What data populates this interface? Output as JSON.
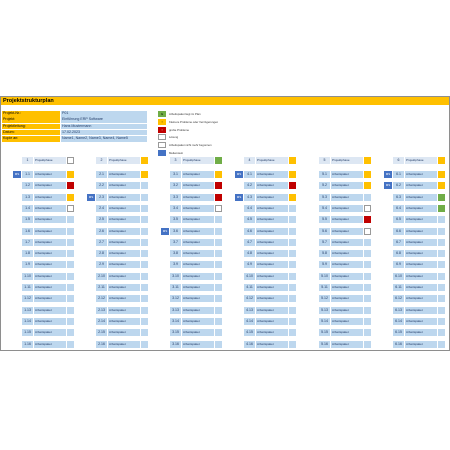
{
  "title": "Projektstrukturplan",
  "meta": [
    {
      "label": "Projekt-Nr.:",
      "value": "P01"
    },
    {
      "label": "Projekt:",
      "value": "Einführung ERP Software"
    },
    {
      "label": "Projektleitung:",
      "value": "Hans Mustermann"
    },
    {
      "label": "Datum:",
      "value": "17.02.2023"
    },
    {
      "label": "Kopie an:",
      "value": "Name1, Name2, Name3, Name4, Name5"
    }
  ],
  "legend": [
    {
      "symbol": "G",
      "text": "Arbeitspaket liegt im Plan",
      "color": "#70ad47",
      "text_color": "#000000"
    },
    {
      "symbol": "!",
      "text": "Kleinere Probleme oder Verzögerungen",
      "color": "#ffc000",
      "text_color": "#000000"
    },
    {
      "symbol": "!",
      "text": "große Probleme",
      "color": "#c00000",
      "text_color": "#ffffff"
    },
    {
      "symbol": "",
      "text": "Lösung",
      "color": "#ffffff",
      "text_color": "#000000"
    },
    {
      "symbol": "",
      "text": "Arbeitspaket nicht mehr begonnen",
      "color": "#ffffff",
      "text_color": "#000000"
    },
    {
      "symbol": "",
      "text": "Meilenstein",
      "color": "#4472c4",
      "text_color": "#ffffff"
    }
  ],
  "columns": [
    {
      "head": {
        "id": "1",
        "label": "Projektphase",
        "badge": "",
        "badge_color": "#ffffff"
      },
      "rows": [
        {
          "tag": "MS",
          "id": "1.1",
          "label": "Arbeitspaket",
          "badge": "",
          "badge_color": "#ffc000"
        },
        {
          "tag": "",
          "id": "1.2",
          "label": "Arbeitspaket",
          "badge": "",
          "badge_color": "#c00000"
        },
        {
          "tag": "",
          "id": "1.3",
          "label": "Arbeitspaket",
          "badge": "",
          "badge_color": "#ffc000"
        },
        {
          "tag": "",
          "id": "1.4",
          "label": "Arbeitspaket",
          "badge": "",
          "badge_color": "#ffffff"
        },
        {
          "tag": "",
          "id": "1.5",
          "label": "Arbeitspaket",
          "badge": "",
          "badge_color": ""
        },
        {
          "tag": "",
          "id": "1.6",
          "label": "Arbeitspaket",
          "badge": "",
          "badge_color": ""
        },
        {
          "tag": "",
          "id": "1.7",
          "label": "Arbeitspaket",
          "badge": "",
          "badge_color": ""
        },
        {
          "tag": "",
          "id": "1.8",
          "label": "Arbeitspaket",
          "badge": "",
          "badge_color": ""
        },
        {
          "tag": "",
          "id": "1.9",
          "label": "Arbeitspaket",
          "badge": "",
          "badge_color": ""
        },
        {
          "tag": "",
          "id": "1.10",
          "label": "Arbeitspaket",
          "badge": "",
          "badge_color": ""
        },
        {
          "tag": "",
          "id": "1.11",
          "label": "Arbeitspaket",
          "badge": "",
          "badge_color": ""
        },
        {
          "tag": "",
          "id": "1.12",
          "label": "Arbeitspaket",
          "badge": "",
          "badge_color": ""
        },
        {
          "tag": "",
          "id": "1.13",
          "label": "Arbeitspaket",
          "badge": "",
          "badge_color": ""
        },
        {
          "tag": "",
          "id": "1.14",
          "label": "Arbeitspaket",
          "badge": "",
          "badge_color": ""
        },
        {
          "tag": "",
          "id": "1.15",
          "label": "Arbeitspaket",
          "badge": "",
          "badge_color": ""
        },
        {
          "tag": "",
          "id": "1.16",
          "label": "Arbeitspaket",
          "badge": "",
          "badge_color": ""
        }
      ]
    },
    {
      "head": {
        "id": "2",
        "label": "Projektphase",
        "badge": "",
        "badge_color": "#ffc000"
      },
      "rows": [
        {
          "tag": "",
          "id": "2.1",
          "label": "Arbeitspaket",
          "badge": "",
          "badge_color": "#ffc000"
        },
        {
          "tag": "",
          "id": "2.2",
          "label": "Arbeitspaket",
          "badge": "",
          "badge_color": ""
        },
        {
          "tag": "MS",
          "id": "2.3",
          "label": "Arbeitspaket",
          "badge": "",
          "badge_color": ""
        },
        {
          "tag": "",
          "id": "2.4",
          "label": "Arbeitspaket",
          "badge": "",
          "badge_color": ""
        },
        {
          "tag": "",
          "id": "2.5",
          "label": "Arbeitspaket",
          "badge": "",
          "badge_color": ""
        },
        {
          "tag": "",
          "id": "2.6",
          "label": "Arbeitspaket",
          "badge": "",
          "badge_color": ""
        },
        {
          "tag": "",
          "id": "2.7",
          "label": "Arbeitspaket",
          "badge": "",
          "badge_color": ""
        },
        {
          "tag": "",
          "id": "2.8",
          "label": "Arbeitspaket",
          "badge": "",
          "badge_color": ""
        },
        {
          "tag": "",
          "id": "2.9",
          "label": "Arbeitspaket",
          "badge": "",
          "badge_color": ""
        },
        {
          "tag": "",
          "id": "2.10",
          "label": "Arbeitspaket",
          "badge": "",
          "badge_color": ""
        },
        {
          "tag": "",
          "id": "2.11",
          "label": "Arbeitspaket",
          "badge": "",
          "badge_color": ""
        },
        {
          "tag": "",
          "id": "2.12",
          "label": "Arbeitspaket",
          "badge": "",
          "badge_color": ""
        },
        {
          "tag": "",
          "id": "2.13",
          "label": "Arbeitspaket",
          "badge": "",
          "badge_color": ""
        },
        {
          "tag": "",
          "id": "2.14",
          "label": "Arbeitspaket",
          "badge": "",
          "badge_color": ""
        },
        {
          "tag": "",
          "id": "2.15",
          "label": "Arbeitspaket",
          "badge": "",
          "badge_color": ""
        },
        {
          "tag": "",
          "id": "2.16",
          "label": "Arbeitspaket",
          "badge": "",
          "badge_color": ""
        }
      ]
    },
    {
      "head": {
        "id": "3",
        "label": "Projektphase",
        "badge": "",
        "badge_color": "#70ad47"
      },
      "rows": [
        {
          "tag": "",
          "id": "3.1",
          "label": "Arbeitspaket",
          "badge": "",
          "badge_color": "#ffc000"
        },
        {
          "tag": "",
          "id": "3.2",
          "label": "Arbeitspaket",
          "badge": "",
          "badge_color": "#c00000"
        },
        {
          "tag": "",
          "id": "3.3",
          "label": "Arbeitspaket",
          "badge": "",
          "badge_color": "#c00000"
        },
        {
          "tag": "",
          "id": "3.4",
          "label": "Arbeitspaket",
          "badge": "",
          "badge_color": "#ffffff"
        },
        {
          "tag": "",
          "id": "3.5",
          "label": "Arbeitspaket",
          "badge": "",
          "badge_color": ""
        },
        {
          "tag": "MS",
          "id": "3.6",
          "label": "Arbeitspaket",
          "badge": "",
          "badge_color": ""
        },
        {
          "tag": "",
          "id": "3.7",
          "label": "Arbeitspaket",
          "badge": "",
          "badge_color": ""
        },
        {
          "tag": "",
          "id": "3.8",
          "label": "Arbeitspaket",
          "badge": "",
          "badge_color": ""
        },
        {
          "tag": "",
          "id": "3.9",
          "label": "Arbeitspaket",
          "badge": "",
          "badge_color": ""
        },
        {
          "tag": "",
          "id": "3.10",
          "label": "Arbeitspaket",
          "badge": "",
          "badge_color": ""
        },
        {
          "tag": "",
          "id": "3.11",
          "label": "Arbeitspaket",
          "badge": "",
          "badge_color": ""
        },
        {
          "tag": "",
          "id": "3.12",
          "label": "Arbeitspaket",
          "badge": "",
          "badge_color": ""
        },
        {
          "tag": "",
          "id": "3.13",
          "label": "Arbeitspaket",
          "badge": "",
          "badge_color": ""
        },
        {
          "tag": "",
          "id": "3.14",
          "label": "Arbeitspaket",
          "badge": "",
          "badge_color": ""
        },
        {
          "tag": "",
          "id": "3.15",
          "label": "Arbeitspaket",
          "badge": "",
          "badge_color": ""
        },
        {
          "tag": "",
          "id": "3.16",
          "label": "Arbeitspaket",
          "badge": "",
          "badge_color": ""
        }
      ]
    },
    {
      "head": {
        "id": "4",
        "label": "Projektphase",
        "badge": "",
        "badge_color": "#ffc000"
      },
      "rows": [
        {
          "tag": "MS",
          "id": "4.1",
          "label": "Arbeitspaket",
          "badge": "",
          "badge_color": "#ffc000"
        },
        {
          "tag": "",
          "id": "4.2",
          "label": "Arbeitspaket",
          "badge": "",
          "badge_color": "#c00000"
        },
        {
          "tag": "MS",
          "id": "4.3",
          "label": "Arbeitspaket",
          "badge": "",
          "badge_color": "#ffc000"
        },
        {
          "tag": "",
          "id": "4.4",
          "label": "Arbeitspaket",
          "badge": "",
          "badge_color": ""
        },
        {
          "tag": "",
          "id": "4.5",
          "label": "Arbeitspaket",
          "badge": "",
          "badge_color": ""
        },
        {
          "tag": "",
          "id": "4.6",
          "label": "Arbeitspaket",
          "badge": "",
          "badge_color": ""
        },
        {
          "tag": "",
          "id": "4.7",
          "label": "Arbeitspaket",
          "badge": "",
          "badge_color": ""
        },
        {
          "tag": "",
          "id": "4.8",
          "label": "Arbeitspaket",
          "badge": "",
          "badge_color": ""
        },
        {
          "tag": "",
          "id": "4.9",
          "label": "Arbeitspaket",
          "badge": "",
          "badge_color": ""
        },
        {
          "tag": "",
          "id": "4.10",
          "label": "Arbeitspaket",
          "badge": "",
          "badge_color": ""
        },
        {
          "tag": "",
          "id": "4.11",
          "label": "Arbeitspaket",
          "badge": "",
          "badge_color": ""
        },
        {
          "tag": "",
          "id": "4.12",
          "label": "Arbeitspaket",
          "badge": "",
          "badge_color": ""
        },
        {
          "tag": "",
          "id": "4.13",
          "label": "Arbeitspaket",
          "badge": "",
          "badge_color": ""
        },
        {
          "tag": "",
          "id": "4.14",
          "label": "Arbeitspaket",
          "badge": "",
          "badge_color": ""
        },
        {
          "tag": "",
          "id": "4.15",
          "label": "Arbeitspaket",
          "badge": "",
          "badge_color": ""
        },
        {
          "tag": "",
          "id": "4.16",
          "label": "Arbeitspaket",
          "badge": "",
          "badge_color": ""
        }
      ]
    },
    {
      "head": {
        "id": "5",
        "label": "Projektphase",
        "badge": "",
        "badge_color": "#ffc000"
      },
      "rows": [
        {
          "tag": "",
          "id": "5.1",
          "label": "Arbeitspaket",
          "badge": "",
          "badge_color": "#ffc000"
        },
        {
          "tag": "",
          "id": "5.2",
          "label": "Arbeitspaket",
          "badge": "",
          "badge_color": "#ffc000"
        },
        {
          "tag": "",
          "id": "5.3",
          "label": "Arbeitspaket",
          "badge": "",
          "badge_color": ""
        },
        {
          "tag": "",
          "id": "5.4",
          "label": "Arbeitspaket",
          "badge": "",
          "badge_color": "#ffffff"
        },
        {
          "tag": "",
          "id": "5.5",
          "label": "Arbeitspaket",
          "badge": "",
          "badge_color": "#c00000"
        },
        {
          "tag": "",
          "id": "5.6",
          "label": "Arbeitspaket",
          "badge": "",
          "badge_color": "#ffffff"
        },
        {
          "tag": "",
          "id": "5.7",
          "label": "Arbeitspaket",
          "badge": "",
          "badge_color": ""
        },
        {
          "tag": "",
          "id": "5.8",
          "label": "Arbeitspaket",
          "badge": "",
          "badge_color": ""
        },
        {
          "tag": "",
          "id": "5.9",
          "label": "Arbeitspaket",
          "badge": "",
          "badge_color": ""
        },
        {
          "tag": "",
          "id": "5.10",
          "label": "Arbeitspaket",
          "badge": "",
          "badge_color": ""
        },
        {
          "tag": "",
          "id": "5.11",
          "label": "Arbeitspaket",
          "badge": "",
          "badge_color": ""
        },
        {
          "tag": "",
          "id": "5.12",
          "label": "Arbeitspaket",
          "badge": "",
          "badge_color": ""
        },
        {
          "tag": "",
          "id": "5.13",
          "label": "Arbeitspaket",
          "badge": "",
          "badge_color": ""
        },
        {
          "tag": "",
          "id": "5.14",
          "label": "Arbeitspaket",
          "badge": "",
          "badge_color": ""
        },
        {
          "tag": "",
          "id": "5.15",
          "label": "Arbeitspaket",
          "badge": "",
          "badge_color": ""
        },
        {
          "tag": "",
          "id": "5.16",
          "label": "Arbeitspaket",
          "badge": "",
          "badge_color": ""
        }
      ]
    },
    {
      "head": {
        "id": "6",
        "label": "Projektphase",
        "badge": "",
        "badge_color": "#ffc000"
      },
      "rows": [
        {
          "tag": "MS",
          "id": "6.1",
          "label": "Arbeitspaket",
          "badge": "",
          "badge_color": "#ffc000"
        },
        {
          "tag": "MS",
          "id": "6.2",
          "label": "Arbeitspaket",
          "badge": "",
          "badge_color": "#ffc000"
        },
        {
          "tag": "",
          "id": "6.3",
          "label": "Arbeitspaket",
          "badge": "",
          "badge_color": "#70ad47"
        },
        {
          "tag": "",
          "id": "6.4",
          "label": "Arbeitspaket",
          "badge": "",
          "badge_color": "#70ad47"
        },
        {
          "tag": "",
          "id": "6.5",
          "label": "Arbeitspaket",
          "badge": "",
          "badge_color": ""
        },
        {
          "tag": "",
          "id": "6.6",
          "label": "Arbeitspaket",
          "badge": "",
          "badge_color": ""
        },
        {
          "tag": "",
          "id": "6.7",
          "label": "Arbeitspaket",
          "badge": "",
          "badge_color": ""
        },
        {
          "tag": "",
          "id": "6.8",
          "label": "Arbeitspaket",
          "badge": "",
          "badge_color": ""
        },
        {
          "tag": "",
          "id": "6.9",
          "label": "Arbeitspaket",
          "badge": "",
          "badge_color": ""
        },
        {
          "tag": "",
          "id": "6.10",
          "label": "Arbeitspaket",
          "badge": "",
          "badge_color": ""
        },
        {
          "tag": "",
          "id": "6.11",
          "label": "Arbeitspaket",
          "badge": "",
          "badge_color": ""
        },
        {
          "tag": "",
          "id": "6.12",
          "label": "Arbeitspaket",
          "badge": "",
          "badge_color": ""
        },
        {
          "tag": "",
          "id": "6.13",
          "label": "Arbeitspaket",
          "badge": "",
          "badge_color": ""
        },
        {
          "tag": "",
          "id": "6.14",
          "label": "Arbeitspaket",
          "badge": "",
          "badge_color": ""
        },
        {
          "tag": "",
          "id": "6.15",
          "label": "Arbeitspaket",
          "badge": "",
          "badge_color": ""
        },
        {
          "tag": "",
          "id": "6.16",
          "label": "Arbeitspaket",
          "badge": "",
          "badge_color": ""
        }
      ]
    }
  ]
}
